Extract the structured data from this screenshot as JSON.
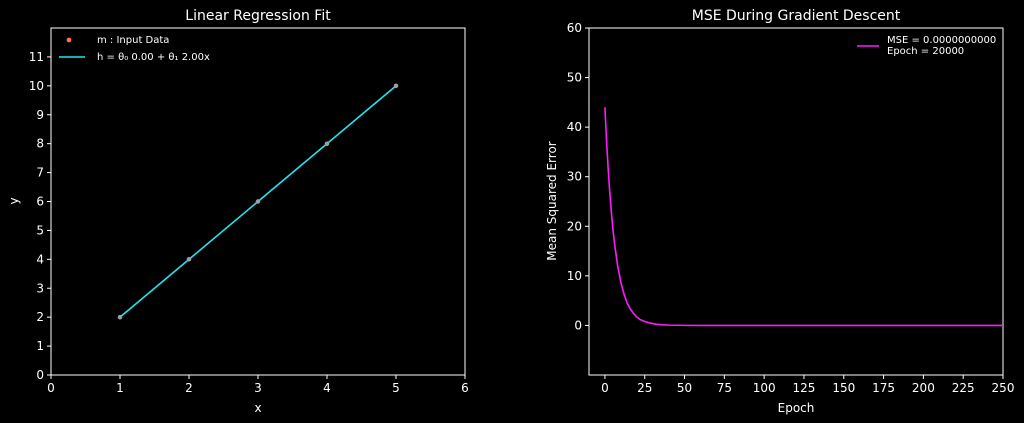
{
  "chart_data": [
    {
      "type": "scatter+line",
      "title": "Linear Regression Fit",
      "xlabel": "x",
      "ylabel": "y",
      "xlim": [
        0,
        6
      ],
      "ylim": [
        0,
        12
      ],
      "xticks": [
        "0",
        "1",
        "2",
        "3",
        "4",
        "5",
        "6"
      ],
      "yticks": [
        "0",
        "1",
        "2",
        "3",
        "4",
        "5",
        "6",
        "7",
        "8",
        "9",
        "10",
        "11"
      ],
      "grid": false,
      "legend_position": "top-left",
      "series": [
        {
          "name": "m : Input Data",
          "kind": "scatter",
          "color": "#ff6b5e",
          "x": [
            1,
            2,
            3,
            4,
            5
          ],
          "y": [
            2,
            4,
            6,
            8,
            10
          ]
        },
        {
          "name": "h = θ₀ 0.00 + θ₁ 2.00x",
          "kind": "line",
          "color": "#22e5f0",
          "x": [
            1,
            5
          ],
          "y": [
            2,
            10
          ]
        }
      ]
    },
    {
      "type": "line",
      "title": "MSE During Gradient Descent",
      "xlabel": "Epoch",
      "ylabel": "Mean Squared Error",
      "xlim": [
        -10,
        250
      ],
      "ylim": [
        -10,
        60
      ],
      "xticks": [
        "0",
        "25",
        "50",
        "75",
        "100",
        "125",
        "150",
        "175",
        "200",
        "225",
        "250"
      ],
      "yticks": [
        "0",
        "10",
        "20",
        "30",
        "40",
        "50",
        "60"
      ],
      "grid": false,
      "legend_position": "top-right",
      "legend_lines": [
        "MSE = 0.0000000000",
        "Epoch = 20000"
      ],
      "series": [
        {
          "name": "MSE",
          "color": "#ff1aff",
          "x": [
            0,
            1,
            2,
            3,
            4,
            5,
            6,
            8,
            10,
            12,
            14,
            16,
            18,
            20,
            22,
            25,
            28,
            32,
            36,
            40,
            50,
            60,
            80,
            100,
            150,
            200,
            250
          ],
          "y": [
            44,
            37.4,
            31.8,
            27.0,
            23.0,
            19.5,
            16.6,
            12.0,
            8.7,
            6.3,
            4.5,
            3.3,
            2.4,
            1.7,
            1.2,
            0.8,
            0.5,
            0.25,
            0.12,
            0.06,
            0.01,
            0.0,
            0.0,
            0.0,
            0.0,
            0.0,
            0.0
          ]
        }
      ]
    }
  ]
}
